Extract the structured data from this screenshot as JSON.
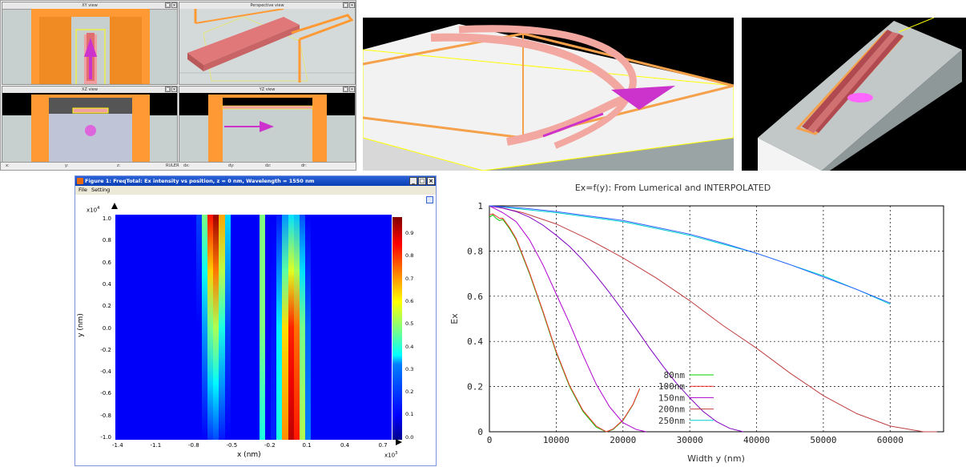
{
  "cad_window": {
    "views": [
      {
        "title": "XY view"
      },
      {
        "title": "Perspective view"
      },
      {
        "title": "XZ view"
      },
      {
        "title": "YZ view"
      }
    ],
    "view_buttons": [
      "□",
      "×"
    ],
    "status_labels": [
      "x:",
      "y:",
      "z:",
      "RULER",
      "dx:",
      "dy:",
      "dz:",
      "dr:"
    ]
  },
  "figure_window": {
    "title": "Figure 1: FreqTotal: Ex intensity vs position, z = 0 nm, Wavelength = 1550 nm",
    "menu": [
      "File",
      "Setting"
    ],
    "buttons": [
      "_",
      "□",
      "×"
    ],
    "plot": {
      "y_multiplier": "x10",
      "y_multiplier_exp": "4",
      "x_multiplier": "x10",
      "x_multiplier_exp": "3",
      "xlabel": "x  (nm)",
      "ylabel": "y  (nm)",
      "x_ticks": [
        "-1.4",
        "-1.1",
        "-0.8",
        "-0.5",
        "-0.2",
        "0.1",
        "0.4",
        "0.7"
      ],
      "y_ticks": [
        "1.0",
        "0.8",
        "0.6",
        "0.4",
        "0.2",
        "0.0",
        "-0.2",
        "-0.4",
        "-0.6",
        "-0.8",
        "-1.0"
      ],
      "colorbar_ticks": [
        "0.9",
        "0.8",
        "0.7",
        "0.6",
        "0.5",
        "0.4",
        "0.3",
        "0.2",
        "0.1",
        "0.0"
      ]
    }
  },
  "chart_data": {
    "type": "line",
    "title": "Ex=f(y): From Lumerical and INTERPOLATED",
    "xlabel": "Width y (nm)",
    "ylabel": "Ex",
    "xlim": [
      0,
      68000
    ],
    "ylim": [
      0,
      1
    ],
    "x_ticks": [
      "0",
      "10000",
      "20000",
      "30000",
      "40000",
      "50000",
      "60000"
    ],
    "y_ticks": [
      "0",
      "0.2",
      "0.4",
      "0.6",
      "0.8",
      "1"
    ],
    "grid": true,
    "legend_position": "bottom-center",
    "series": [
      {
        "name": "80nm",
        "color": "#00cc00",
        "x": [
          0,
          500,
          1000,
          1500,
          2000,
          3000,
          4000,
          6000,
          8000,
          10000,
          12000,
          14000,
          16000,
          17500,
          18500,
          20000,
          21500,
          22500
        ],
        "y": [
          0.95,
          0.96,
          0.945,
          0.935,
          0.94,
          0.9,
          0.85,
          0.7,
          0.53,
          0.35,
          0.2,
          0.09,
          0.02,
          0.0,
          0.01,
          0.05,
          0.12,
          0.19
        ]
      },
      {
        "name": "100nm",
        "color": "#ff3030",
        "x": [
          0,
          500,
          1000,
          1500,
          2000,
          3000,
          4000,
          6000,
          8000,
          10000,
          12000,
          14000,
          16000,
          17500,
          18500,
          20000,
          21500,
          22500
        ],
        "y": [
          0.96,
          0.965,
          0.955,
          0.945,
          0.945,
          0.905,
          0.855,
          0.705,
          0.535,
          0.355,
          0.205,
          0.095,
          0.025,
          0.0,
          0.012,
          0.052,
          0.122,
          0.192
        ]
      },
      {
        "name": "150nm",
        "color": "#b000d0",
        "x": [
          0,
          1000,
          2000,
          4000,
          6000,
          8000,
          10000,
          12000,
          14000,
          16000,
          18000,
          20000,
          22000,
          23500
        ],
        "y": [
          1.0,
          0.985,
          0.97,
          0.93,
          0.85,
          0.74,
          0.61,
          0.48,
          0.34,
          0.21,
          0.11,
          0.04,
          0.01,
          0.0
        ]
      },
      {
        "name": "200nm",
        "color": "#c04040",
        "x": [
          0,
          2000,
          5000,
          10000,
          15000,
          20000,
          25000,
          30000,
          35000,
          40000,
          45000,
          50000,
          55000,
          60000,
          65000,
          67000
        ],
        "y": [
          1.0,
          0.99,
          0.97,
          0.92,
          0.85,
          0.77,
          0.68,
          0.58,
          0.47,
          0.37,
          0.26,
          0.16,
          0.08,
          0.025,
          0.0,
          0.0
        ]
      },
      {
        "name": "250nm",
        "color": "#00d0d0",
        "x": [
          0,
          2000,
          5000,
          10000,
          15000,
          20000,
          25000,
          30000,
          35000,
          40000,
          45000,
          50000,
          55000,
          60000
        ],
        "y": [
          1.0,
          0.995,
          0.985,
          0.97,
          0.95,
          0.93,
          0.9,
          0.87,
          0.83,
          0.79,
          0.74,
          0.69,
          0.63,
          0.565
        ]
      }
    ],
    "extra_series": [
      {
        "color": "#8000c0",
        "x": [
          0,
          2000,
          4000,
          6000,
          8000,
          10000,
          12000,
          14000,
          16000,
          18000,
          20000,
          22000,
          24000,
          26000,
          28000,
          30000,
          32000,
          34000,
          36000,
          38000
        ],
        "y": [
          1.0,
          0.99,
          0.975,
          0.95,
          0.915,
          0.87,
          0.82,
          0.76,
          0.69,
          0.615,
          0.535,
          0.455,
          0.37,
          0.29,
          0.215,
          0.15,
          0.09,
          0.045,
          0.015,
          0.0
        ]
      },
      {
        "color": "#3060ff",
        "x": [
          0,
          5000,
          10000,
          15000,
          20000,
          25000,
          30000,
          35000,
          40000,
          45000,
          50000,
          55000,
          60000
        ],
        "y": [
          1.0,
          0.99,
          0.975,
          0.955,
          0.935,
          0.905,
          0.875,
          0.835,
          0.79,
          0.74,
          0.685,
          0.63,
          0.57
        ]
      }
    ]
  }
}
